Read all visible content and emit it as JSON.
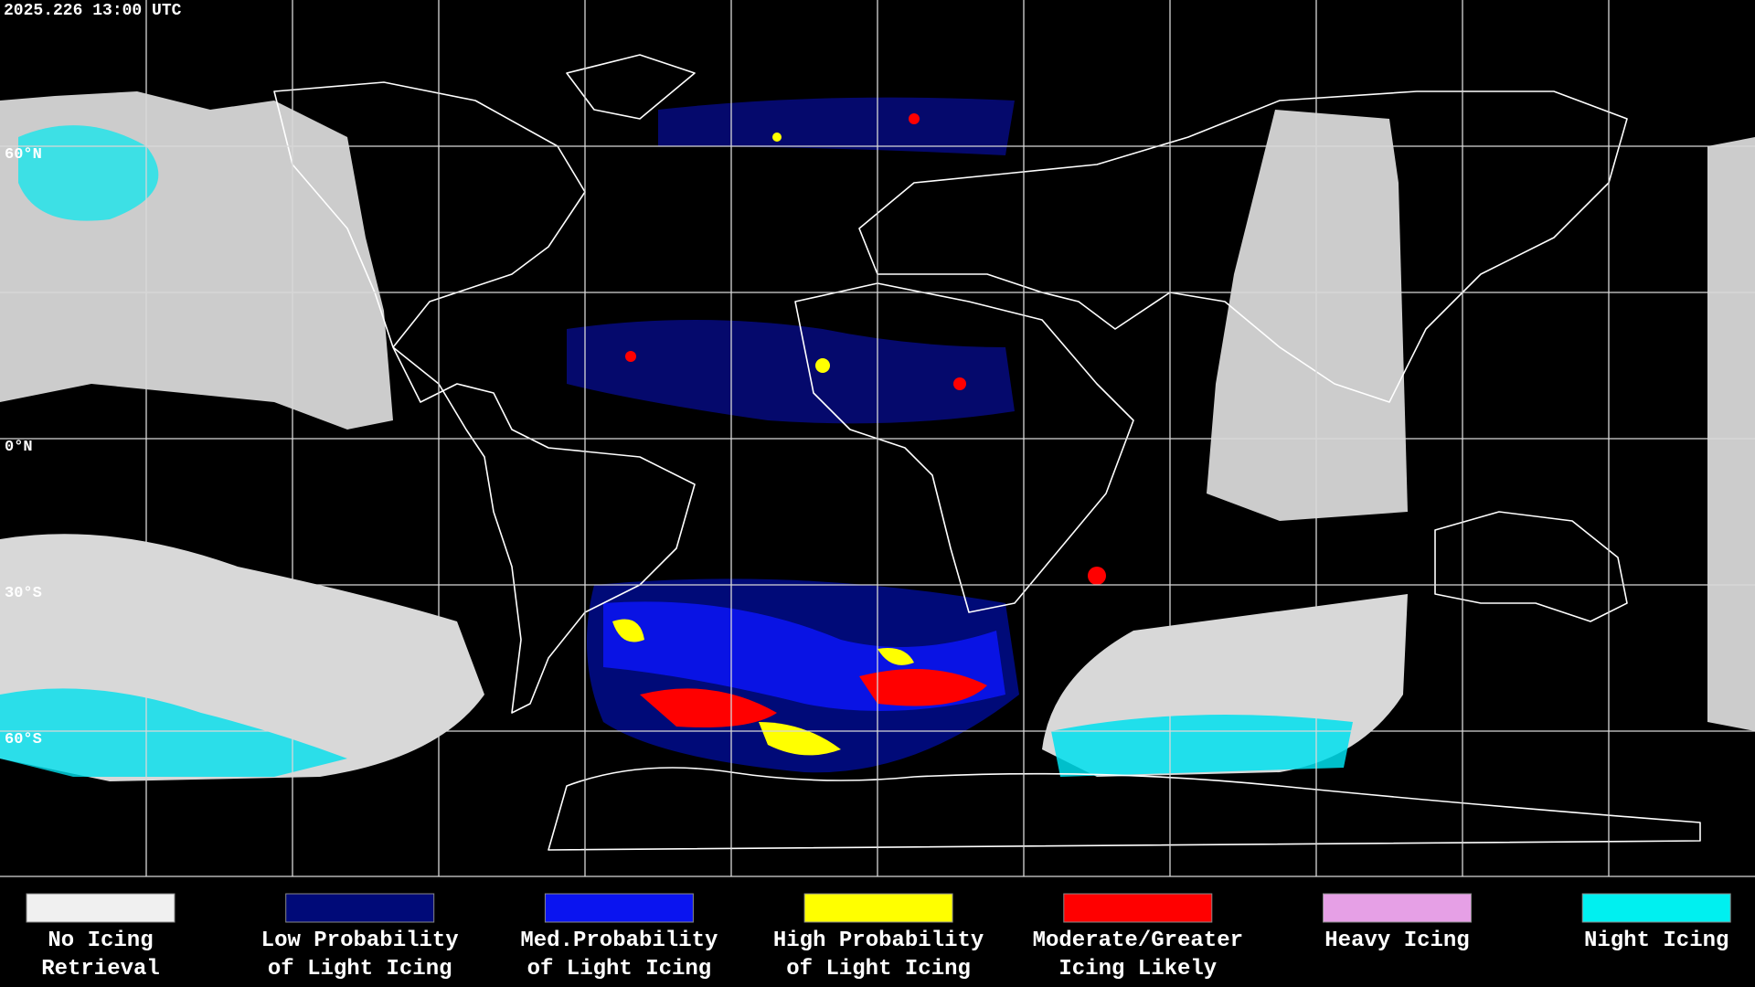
{
  "header": {
    "timestamp": "2025.226 13:00 UTC"
  },
  "map": {
    "lat_labels": [
      "60°N",
      "0°N",
      "30°S",
      "60°S"
    ]
  },
  "legend": [
    {
      "label_lines": [
        "No Icing",
        "Retrieval"
      ],
      "color": "#f0f0f0"
    },
    {
      "label_lines": [
        "Low Probability",
        "of Light Icing"
      ],
      "color": "#000a78"
    },
    {
      "label_lines": [
        "Med.Probability",
        "of Light Icing"
      ],
      "color": "#0a14f0"
    },
    {
      "label_lines": [
        "High Probability",
        "of Light Icing"
      ],
      "color": "#ffff00"
    },
    {
      "label_lines": [
        "Moderate/Greater",
        "Icing Likely"
      ],
      "color": "#ff0000"
    },
    {
      "label_lines": [
        "Heavy Icing"
      ],
      "color": "#e6a0e6"
    },
    {
      "label_lines": [
        "Night Icing"
      ],
      "color": "#00f0f0"
    }
  ]
}
